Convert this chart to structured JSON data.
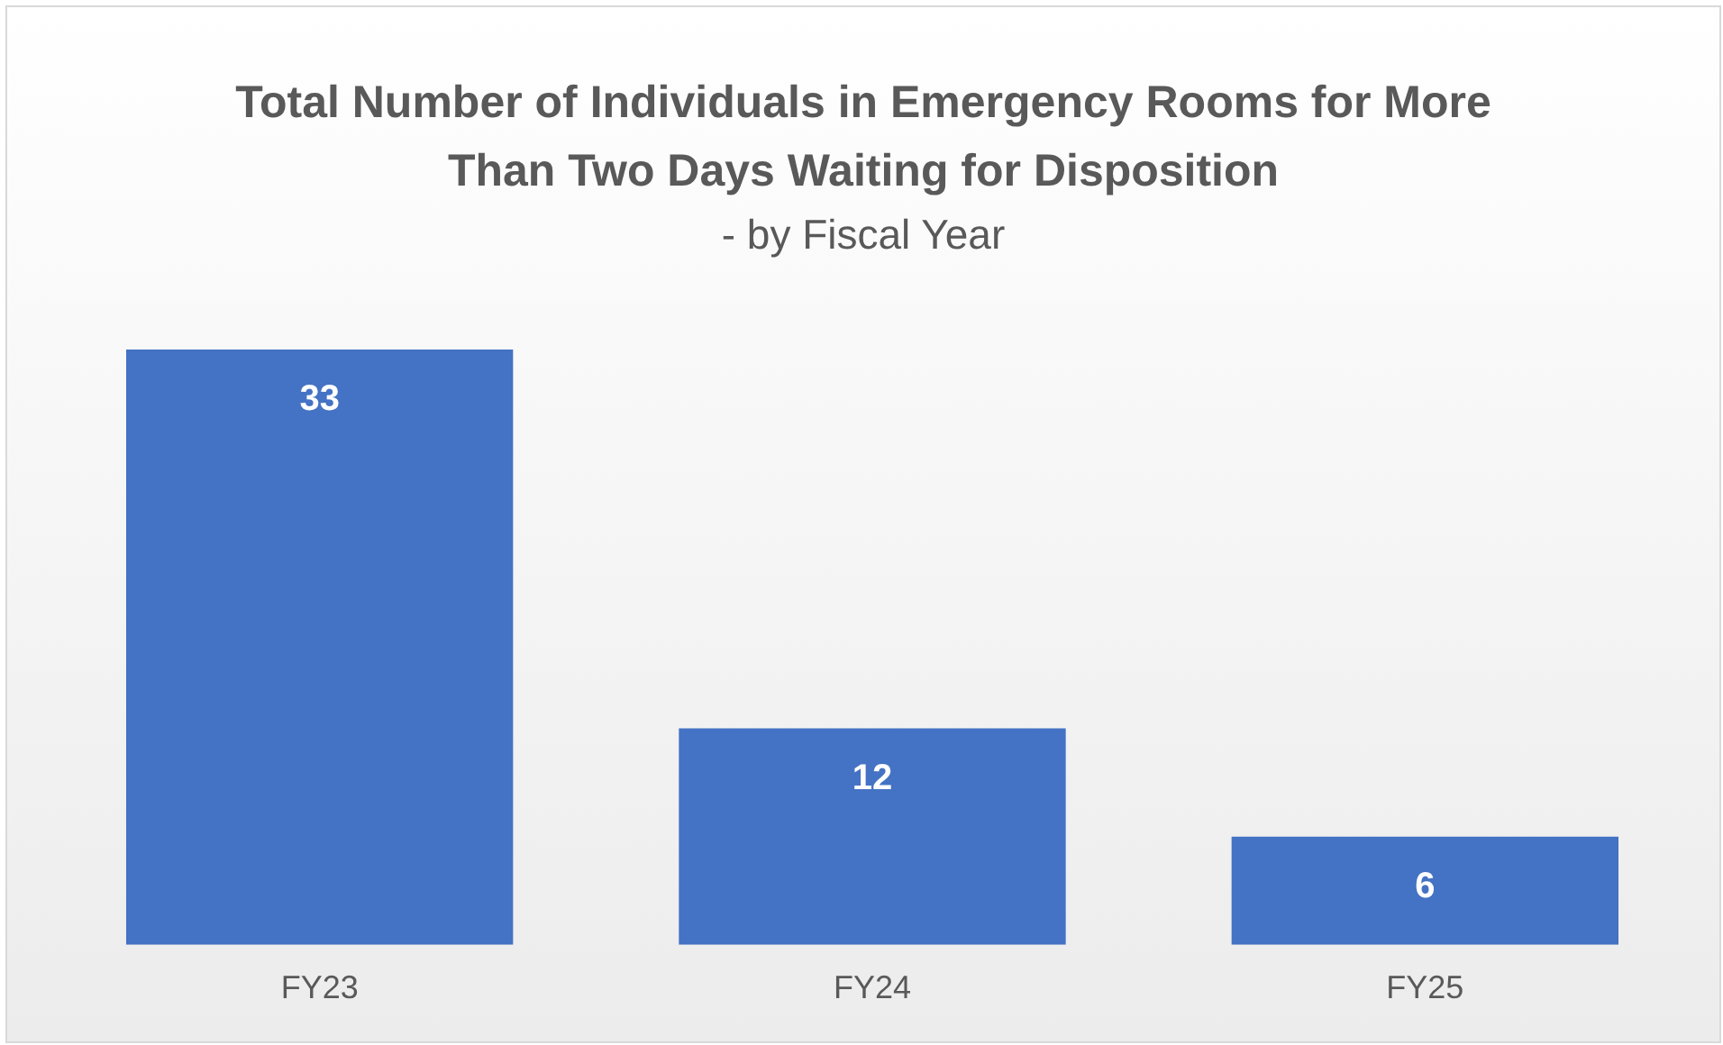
{
  "chart_data": {
    "type": "bar",
    "title": "Total Number of Individuals in Emergency Rooms for More Than Two Days Waiting for Disposition",
    "subtitle": "- by Fiscal Year",
    "categories": [
      "FY23",
      "FY24",
      "FY25"
    ],
    "values": [
      33,
      12,
      6
    ],
    "color": "#4472c4",
    "data_labels": true,
    "grid": false,
    "legend": false
  }
}
